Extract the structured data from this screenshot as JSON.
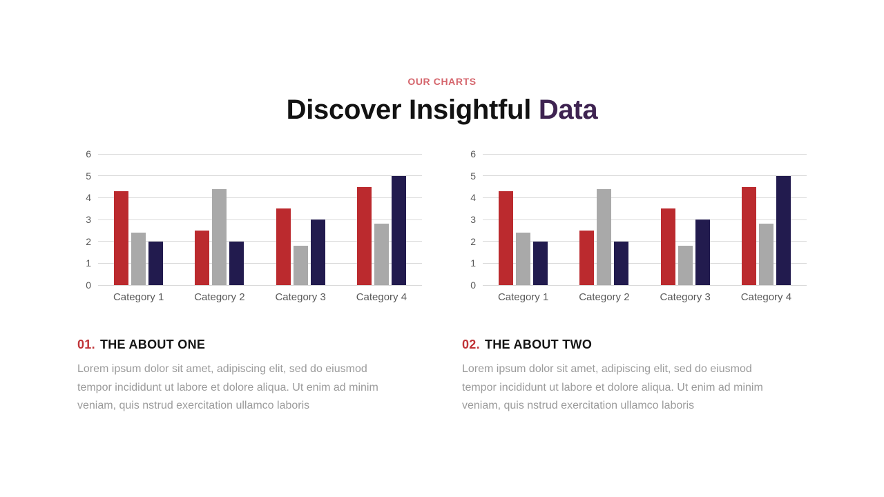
{
  "slide": {
    "eyebrow": "OUR CHARTS",
    "title_main": "Discover Insightful",
    "title_accent": "Data",
    "sections": [
      {
        "number": "01.",
        "title": "THE ABOUT ONE",
        "body": "Lorem ipsum dolor sit amet, adipiscing elit, sed do eiusmod\ntempor incididunt ut labore et dolore aliqua. Ut enim ad minim\nveniam, quis nstrud exercitation ullamco laboris"
      },
      {
        "number": "02.",
        "title": "THE ABOUT TWO",
        "body": "Lorem ipsum dolor sit amet, adipiscing elit, sed do eiusmod\ntempor incididunt ut labore et dolore aliqua. Ut enim ad minim\nveniam, quis nstrud exercitation ullamco laboris"
      }
    ],
    "colors": {
      "eyebrow": "#d5656c",
      "title_accent": "#3e2351",
      "section_number": "#c03438",
      "gridline": "#d9d9d9",
      "axis_text": "#595959"
    }
  },
  "chart_data": [
    {
      "type": "bar",
      "title": "",
      "xlabel": "",
      "ylabel": "",
      "categories": [
        "Category 1",
        "Category 2",
        "Category 3",
        "Category 4"
      ],
      "series": [
        {
          "name": "series-red",
          "color": "#bb2a2e",
          "values": [
            4.3,
            2.5,
            3.5,
            4.5
          ]
        },
        {
          "name": "series-gray",
          "color": "#a9a9a9",
          "values": [
            2.4,
            4.4,
            1.8,
            2.8
          ]
        },
        {
          "name": "series-navy",
          "color": "#221b4e",
          "values": [
            2.0,
            2.0,
            3.0,
            5.0
          ]
        }
      ],
      "ylim": [
        0,
        6
      ],
      "yticks": [
        0,
        1,
        2,
        3,
        4,
        5,
        6
      ],
      "grid": true,
      "legend": false
    },
    {
      "type": "bar",
      "title": "",
      "xlabel": "",
      "ylabel": "",
      "categories": [
        "Category 1",
        "Category 2",
        "Category 3",
        "Category 4"
      ],
      "series": [
        {
          "name": "series-red",
          "color": "#bb2a2e",
          "values": [
            4.3,
            2.5,
            3.5,
            4.5
          ]
        },
        {
          "name": "series-gray",
          "color": "#a9a9a9",
          "values": [
            2.4,
            4.4,
            1.8,
            2.8
          ]
        },
        {
          "name": "series-navy",
          "color": "#221b4e",
          "values": [
            2.0,
            2.0,
            3.0,
            5.0
          ]
        }
      ],
      "ylim": [
        0,
        6
      ],
      "yticks": [
        0,
        1,
        2,
        3,
        4,
        5,
        6
      ],
      "grid": true,
      "legend": false
    }
  ]
}
